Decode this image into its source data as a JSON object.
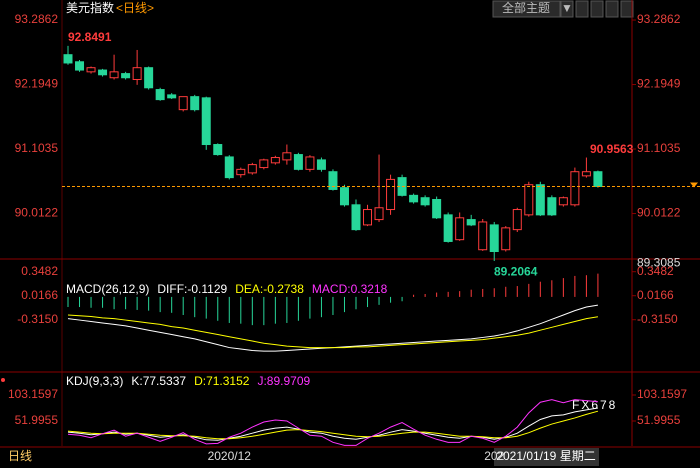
{
  "header": {
    "title": "美元指数",
    "period": "<日线>",
    "theme_button": "全部主题",
    "dropdown": "▼"
  },
  "chart_data": [
    {
      "type": "candlestick",
      "ylim": [
        89.26,
        93.49
      ],
      "yticks": [
        93.2862,
        92.1949,
        91.1035,
        90.0122
      ],
      "bottom_label": 89.3085,
      "up_color": "#ff3c3c",
      "down_color": "#27d699",
      "last_line_color": "#ff9900",
      "open": [
        92.7,
        92.58,
        92.41,
        92.44,
        92.31,
        92.38,
        92.28,
        92.48,
        92.11,
        92.02,
        91.77,
        91.99,
        91.97,
        91.18,
        90.97,
        90.67,
        90.7,
        90.79,
        90.87,
        90.92,
        91.01,
        90.76,
        90.92,
        90.72,
        90.45,
        90.16,
        89.82,
        89.91,
        90.08,
        90.62,
        90.32,
        90.28,
        90.25,
        89.99,
        89.57,
        89.91,
        89.4,
        89.82,
        89.4,
        89.74,
        89.99,
        90.5,
        90.28,
        90.16,
        90.16,
        90.65,
        90.72
      ],
      "high": [
        92.85,
        92.61,
        92.5,
        92.46,
        92.7,
        92.41,
        92.78,
        92.5,
        92.14,
        92.05,
        91.99,
        92.02,
        91.99,
        91.2,
        91.0,
        90.79,
        90.87,
        90.94,
        90.99,
        91.18,
        91.04,
        91.0,
        90.96,
        90.76,
        90.5,
        90.25,
        90.16,
        91.01,
        90.67,
        90.67,
        90.35,
        90.32,
        90.3,
        90.03,
        90.03,
        89.99,
        89.92,
        89.87,
        89.8,
        90.11,
        90.55,
        90.55,
        90.32,
        90.3,
        90.79,
        90.96,
        90.74
      ],
      "low": [
        92.53,
        92.41,
        92.38,
        92.33,
        92.28,
        92.28,
        92.19,
        92.11,
        91.92,
        91.95,
        91.74,
        91.74,
        91.09,
        90.99,
        90.59,
        90.62,
        90.67,
        90.76,
        90.84,
        90.84,
        90.74,
        90.72,
        90.72,
        90.4,
        90.13,
        89.72,
        89.8,
        89.87,
        89.99,
        90.3,
        90.18,
        90.13,
        89.92,
        89.52,
        89.55,
        89.8,
        89.38,
        89.21,
        89.37,
        89.7,
        89.96,
        89.97,
        89.97,
        90.13,
        90.13,
        90.62,
        90.45
      ],
      "close": [
        92.56,
        92.44,
        92.48,
        92.36,
        92.41,
        92.31,
        92.48,
        92.14,
        91.94,
        91.97,
        91.99,
        91.77,
        91.18,
        91.01,
        90.62,
        90.76,
        90.84,
        90.92,
        90.96,
        91.04,
        90.76,
        90.97,
        90.76,
        90.42,
        90.16,
        89.74,
        90.08,
        90.11,
        90.59,
        90.32,
        90.21,
        90.16,
        89.94,
        89.54,
        89.94,
        89.82,
        89.87,
        89.37,
        89.77,
        90.08,
        90.5,
        89.99,
        89.99,
        90.28,
        90.72,
        90.72,
        90.47
      ],
      "annotations": {
        "max": 92.8491,
        "min": 89.2064,
        "recent_high": 90.9563
      }
    },
    {
      "type": "macd",
      "name": "MACD(26,12,9)",
      "ylim": [
        -1.01,
        0.51
      ],
      "yticks": [
        0.3482,
        0.0166,
        {
          "value": -0.315,
          "label": "-0.3150"
        }
      ],
      "up_color": "#ff3c3c",
      "down_color": "#27d699",
      "series": [
        {
          "name": "DIFF:-0.1129",
          "color": "#ffffff",
          "type": "line",
          "values": [
            -0.3,
            -0.32,
            -0.34,
            -0.36,
            -0.38,
            -0.4,
            -0.43,
            -0.46,
            -0.49,
            -0.52,
            -0.55,
            -0.58,
            -0.62,
            -0.66,
            -0.7,
            -0.72,
            -0.74,
            -0.75,
            -0.75,
            -0.74,
            -0.73,
            -0.72,
            -0.71,
            -0.7,
            -0.69,
            -0.68,
            -0.67,
            -0.66,
            -0.65,
            -0.64,
            -0.63,
            -0.62,
            -0.61,
            -0.6,
            -0.59,
            -0.58,
            -0.56,
            -0.54,
            -0.51,
            -0.47,
            -0.42,
            -0.37,
            -0.31,
            -0.25,
            -0.19,
            -0.14,
            -0.1129
          ]
        },
        {
          "name": "DEA:-0.2738",
          "color": "#ffff00",
          "type": "line",
          "values": [
            -0.25,
            -0.26,
            -0.27,
            -0.29,
            -0.3,
            -0.32,
            -0.34,
            -0.36,
            -0.38,
            -0.41,
            -0.43,
            -0.46,
            -0.49,
            -0.52,
            -0.55,
            -0.58,
            -0.61,
            -0.64,
            -0.66,
            -0.68,
            -0.69,
            -0.7,
            -0.7,
            -0.7,
            -0.7,
            -0.69,
            -0.69,
            -0.68,
            -0.67,
            -0.66,
            -0.65,
            -0.64,
            -0.63,
            -0.62,
            -0.61,
            -0.6,
            -0.59,
            -0.57,
            -0.55,
            -0.53,
            -0.5,
            -0.46,
            -0.42,
            -0.38,
            -0.34,
            -0.3,
            -0.2738
          ]
        },
        {
          "name": "MACD:0.3218",
          "color": "#ff33ff",
          "type": "bar",
          "values": [
            -0.14,
            -0.14,
            -0.15,
            -0.15,
            -0.17,
            -0.17,
            -0.18,
            -0.19,
            -0.21,
            -0.22,
            -0.25,
            -0.28,
            -0.3,
            -0.33,
            -0.36,
            -0.37,
            -0.39,
            -0.39,
            -0.37,
            -0.36,
            -0.33,
            -0.3,
            -0.28,
            -0.25,
            -0.21,
            -0.17,
            -0.14,
            -0.11,
            -0.08,
            -0.06,
            0.03,
            0.04,
            0.06,
            0.07,
            0.08,
            0.1,
            0.11,
            0.12,
            0.14,
            0.15,
            0.18,
            0.21,
            0.23,
            0.26,
            0.29,
            0.3,
            0.3218
          ]
        }
      ]
    },
    {
      "type": "kdj",
      "name": "KDJ(9,3,3)",
      "ylim": [
        2.8,
        144.5
      ],
      "yticks": [
        103.1597,
        51.9955
      ],
      "series": [
        {
          "name": "K:77.5337",
          "color": "#ffffff",
          "type": "line",
          "values": [
            30,
            28,
            25,
            27,
            30,
            26,
            28,
            24,
            20,
            22,
            25,
            20,
            15,
            14,
            18,
            22,
            28,
            34,
            38,
            40,
            36,
            30,
            28,
            22,
            18,
            16,
            20,
            24,
            30,
            35,
            32,
            28,
            24,
            20,
            18,
            22,
            20,
            16,
            20,
            28,
            42,
            55,
            62,
            64,
            70,
            74,
            77.5337
          ]
        },
        {
          "name": "D:71.3152",
          "color": "#ffff00",
          "type": "line",
          "values": [
            32,
            30,
            28,
            27,
            28,
            28,
            28,
            26,
            24,
            23,
            23,
            22,
            19,
            17,
            17,
            19,
            22,
            26,
            30,
            34,
            35,
            33,
            31,
            28,
            25,
            22,
            21,
            22,
            25,
            28,
            30,
            30,
            28,
            25,
            22,
            22,
            21,
            19,
            19,
            22,
            29,
            38,
            46,
            52,
            58,
            65,
            71.3152
          ]
        },
        {
          "name": "J:89.9709",
          "color": "#ff33ff",
          "type": "line",
          "values": [
            26,
            24,
            19,
            27,
            34,
            22,
            28,
            20,
            12,
            20,
            29,
            16,
            7,
            8,
            20,
            28,
            40,
            50,
            54,
            52,
            38,
            24,
            22,
            10,
            4,
            4,
            18,
            28,
            40,
            49,
            36,
            24,
            16,
            10,
            10,
            22,
            18,
            10,
            22,
            40,
            68,
            89,
            94,
            88,
            94,
            92,
            89.9709
          ]
        }
      ],
      "categories": [
        null,
        null,
        null,
        null,
        null,
        null,
        null,
        null,
        null,
        null,
        null,
        null,
        null,
        null,
        "2020/12",
        null,
        null,
        null,
        null,
        null,
        null,
        null,
        null,
        null,
        null,
        null,
        null,
        null,
        null,
        null,
        null,
        null,
        null,
        null,
        null,
        null,
        null,
        "202",
        null,
        null,
        null,
        null,
        null,
        null,
        null,
        null,
        null
      ],
      "cursor_date": "2021/01/19 星期二"
    }
  ],
  "footer": {
    "period": "日线",
    "watermark": "FX678"
  }
}
